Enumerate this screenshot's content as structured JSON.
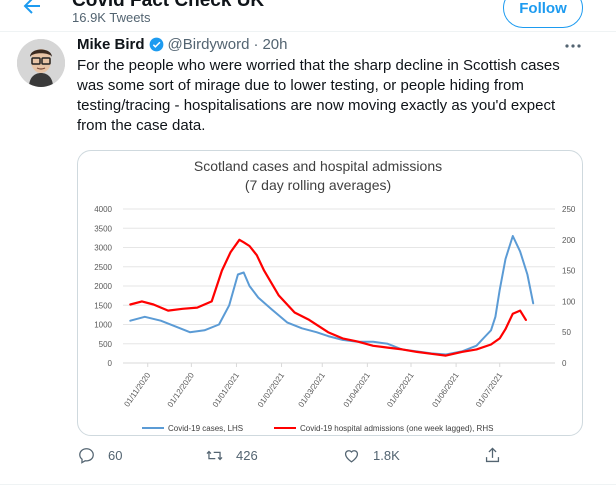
{
  "header": {
    "title": "Covid Fact Check UK",
    "tweet_count": "16.9K Tweets",
    "follow_label": "Follow"
  },
  "tweet": {
    "author": "Mike Bird",
    "handle": "@Birdyword",
    "separator": "·",
    "time": "20h",
    "text": "For the people who were worried that the sharp decline in Scottish cases was some sort of mirage due to lower testing, or people hiding from testing/tracing - hospitalisations are now moving exactly as you'd expect from the case data."
  },
  "actions": {
    "reply_count": "60",
    "retweet_count": "426",
    "like_count": "1.8K"
  },
  "icons": [
    "back-arrow-icon",
    "verified-badge-icon",
    "more-icon",
    "reply-icon",
    "retweet-icon",
    "like-icon",
    "share-icon"
  ],
  "colors": {
    "accent": "#1d9bf0",
    "cases_line": "#5b9bd5",
    "hospital_line": "#ff0000"
  },
  "chart_data": {
    "type": "line",
    "title": "Scotland cases and hospital admissions",
    "subtitle": "(7 day rolling averages)",
    "x_ticks": [
      "01/11/2020",
      "01/12/2020",
      "01/01/2021",
      "01/02/2021",
      "01/03/2021",
      "01/04/2021",
      "01/05/2021",
      "01/06/2021",
      "01/07/2021"
    ],
    "y_left_ticks": [
      "0",
      "500",
      "1000",
      "1500",
      "2000",
      "2500",
      "3000",
      "3500",
      "4000"
    ],
    "y_right_ticks": [
      "0",
      "50",
      "100",
      "150",
      "200",
      "250"
    ],
    "ylim_left": [
      0,
      4000
    ],
    "ylim_right": [
      0,
      250
    ],
    "grid": true,
    "legend_position": "bottom",
    "series": [
      {
        "name": "Covid-19 cases, LHS",
        "axis": "left",
        "color": "#5b9bd5",
        "x": [
          "2020-10-20",
          "2020-10-30",
          "2020-11-10",
          "2020-11-20",
          "2020-11-30",
          "2020-12-10",
          "2020-12-20",
          "2020-12-27",
          "2021-01-02",
          "2021-01-06",
          "2021-01-10",
          "2021-01-16",
          "2021-01-25",
          "2021-02-05",
          "2021-02-15",
          "2021-02-25",
          "2021-03-05",
          "2021-03-15",
          "2021-03-25",
          "2021-04-05",
          "2021-04-15",
          "2021-04-25",
          "2021-05-05",
          "2021-05-15",
          "2021-05-25",
          "2021-06-05",
          "2021-06-15",
          "2021-06-20",
          "2021-06-25",
          "2021-06-28",
          "2021-07-01",
          "2021-07-05",
          "2021-07-10",
          "2021-07-15",
          "2021-07-20",
          "2021-07-24"
        ],
        "y": [
          1100,
          1200,
          1100,
          950,
          800,
          850,
          1000,
          1500,
          2300,
          2350,
          2000,
          1700,
          1400,
          1050,
          900,
          800,
          700,
          600,
          550,
          550,
          500,
          350,
          300,
          250,
          220,
          300,
          450,
          650,
          850,
          1200,
          1900,
          2700,
          3300,
          2900,
          2300,
          1550
        ]
      },
      {
        "name": "Covid-19 hospital admissions (one week lagged), RHS",
        "axis": "right",
        "color": "#ff0000",
        "x": [
          "2020-10-20",
          "2020-10-28",
          "2020-11-05",
          "2020-11-15",
          "2020-11-25",
          "2020-12-05",
          "2020-12-15",
          "2020-12-22",
          "2020-12-28",
          "2021-01-03",
          "2021-01-06",
          "2021-01-10",
          "2021-01-15",
          "2021-01-20",
          "2021-01-30",
          "2021-02-10",
          "2021-02-20",
          "2021-03-05",
          "2021-03-15",
          "2021-03-25",
          "2021-04-05",
          "2021-04-15",
          "2021-04-25",
          "2021-05-05",
          "2021-05-15",
          "2021-05-25",
          "2021-06-05",
          "2021-06-15",
          "2021-06-25",
          "2021-07-01",
          "2021-07-05",
          "2021-07-10",
          "2021-07-15",
          "2021-07-19"
        ],
        "y": [
          95,
          100,
          95,
          85,
          88,
          90,
          100,
          150,
          180,
          200,
          196,
          190,
          175,
          150,
          110,
          82,
          70,
          50,
          40,
          35,
          28,
          25,
          22,
          18,
          15,
          12,
          18,
          22,
          30,
          40,
          55,
          80,
          85,
          70
        ]
      }
    ]
  }
}
